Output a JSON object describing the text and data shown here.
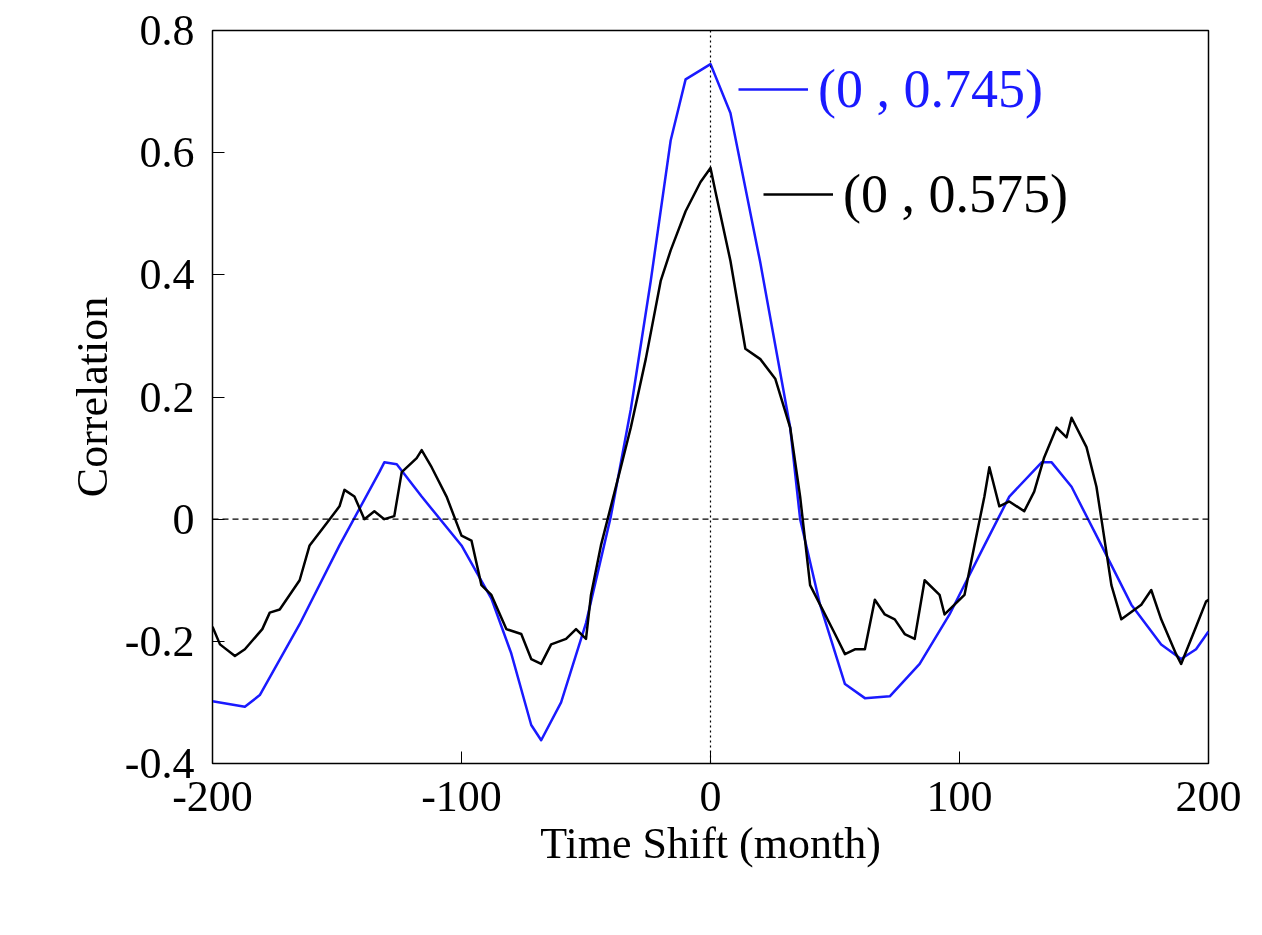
{
  "chart_data": {
    "type": "line",
    "xlabel": "Time Shift (month)",
    "ylabel": "Correlation",
    "xlim": [
      -200,
      200
    ],
    "xticks": [
      -200,
      -100,
      0,
      100,
      200
    ],
    "ylim": [
      -0.4,
      0.8
    ],
    "yticks": [
      -0.4,
      -0.2,
      0,
      0.2,
      0.4,
      0.6,
      0.8
    ],
    "grid": false,
    "legend": "top right",
    "line_style": "solid",
    "marker": "none",
    "ref_lines": [
      {
        "axis": "x",
        "value": 0,
        "color": "#000000",
        "line_style": "dotted"
      },
      {
        "axis": "y",
        "value": 0,
        "color": "#000000",
        "line_style": "dashed"
      }
    ],
    "series": [
      {
        "name": "(0 , 0.745)",
        "color": "#1a1aff",
        "x": [
          -200,
          -187,
          -181,
          -165,
          -149,
          -133,
          -131,
          -126,
          -116,
          -100,
          -88,
          -80,
          -72,
          -68,
          -60,
          -50,
          -40,
          -32,
          -24,
          -16,
          -10,
          0,
          8,
          20,
          32,
          36,
          44,
          54,
          62,
          72,
          84,
          96,
          110,
          120,
          133,
          137,
          145,
          157,
          169,
          181,
          189,
          195,
          200
        ],
        "values": [
          -0.298,
          -0.307,
          -0.288,
          -0.172,
          -0.043,
          0.077,
          0.093,
          0.09,
          0.037,
          -0.043,
          -0.13,
          -0.22,
          -0.337,
          -0.362,
          -0.3,
          -0.17,
          0.005,
          0.18,
          0.39,
          0.62,
          0.72,
          0.745,
          0.665,
          0.42,
          0.15,
          0,
          -0.14,
          -0.27,
          -0.293,
          -0.29,
          -0.237,
          -0.156,
          -0.043,
          0.037,
          0.093,
          0.093,
          0.053,
          -0.043,
          -0.14,
          -0.205,
          -0.229,
          -0.213,
          -0.184
        ]
      },
      {
        "name": "(0 , 0.575)",
        "color": "#000000",
        "x": [
          -200,
          -197,
          -191,
          -187,
          -180,
          -177,
          -173,
          -165,
          -161,
          -155,
          -149,
          -147,
          -143,
          -139,
          -135,
          -131,
          -127,
          -124,
          -118,
          -116,
          -112,
          -106,
          -100,
          -96,
          -92,
          -88,
          -82,
          -76,
          -72,
          -68,
          -64,
          -58,
          -54,
          -50,
          -48,
          -44,
          -36,
          -32,
          -26,
          -20,
          -16,
          -10,
          -4,
          0,
          2,
          8,
          14,
          20,
          26,
          32,
          36,
          40,
          44,
          50,
          54,
          58,
          62,
          66,
          70,
          74,
          78,
          82,
          86,
          92,
          94,
          102,
          106,
          110,
          112,
          116,
          120,
          126,
          130,
          134,
          139,
          143,
          145,
          151,
          155,
          157,
          161,
          165,
          173,
          177,
          181,
          187,
          189,
          195,
          199,
          200
        ],
        "values": [
          -0.176,
          -0.205,
          -0.224,
          -0.213,
          -0.18,
          -0.153,
          -0.148,
          -0.1,
          -0.043,
          -0.011,
          0.021,
          0.048,
          0.037,
          0,
          0.013,
          0,
          0.005,
          0.077,
          0.1,
          0.113,
          0.085,
          0.037,
          -0.027,
          -0.035,
          -0.108,
          -0.124,
          -0.18,
          -0.188,
          -0.229,
          -0.237,
          -0.205,
          -0.196,
          -0.18,
          -0.196,
          -0.124,
          -0.043,
          0.085,
          0.15,
          0.262,
          0.39,
          0.44,
          0.504,
          0.552,
          0.575,
          0.536,
          0.423,
          0.279,
          0.262,
          0.23,
          0.15,
          0.037,
          -0.108,
          -0.14,
          -0.188,
          -0.221,
          -0.213,
          -0.213,
          -0.132,
          -0.156,
          -0.164,
          -0.188,
          -0.196,
          -0.1,
          -0.124,
          -0.156,
          -0.124,
          -0.043,
          0.037,
          0.085,
          0.021,
          0.029,
          0.013,
          0.045,
          0.101,
          0.15,
          0.134,
          0.166,
          0.118,
          0.053,
          0,
          -0.108,
          -0.164,
          -0.14,
          -0.116,
          -0.164,
          -0.221,
          -0.237,
          -0.176,
          -0.135,
          -0.132
        ]
      }
    ]
  }
}
